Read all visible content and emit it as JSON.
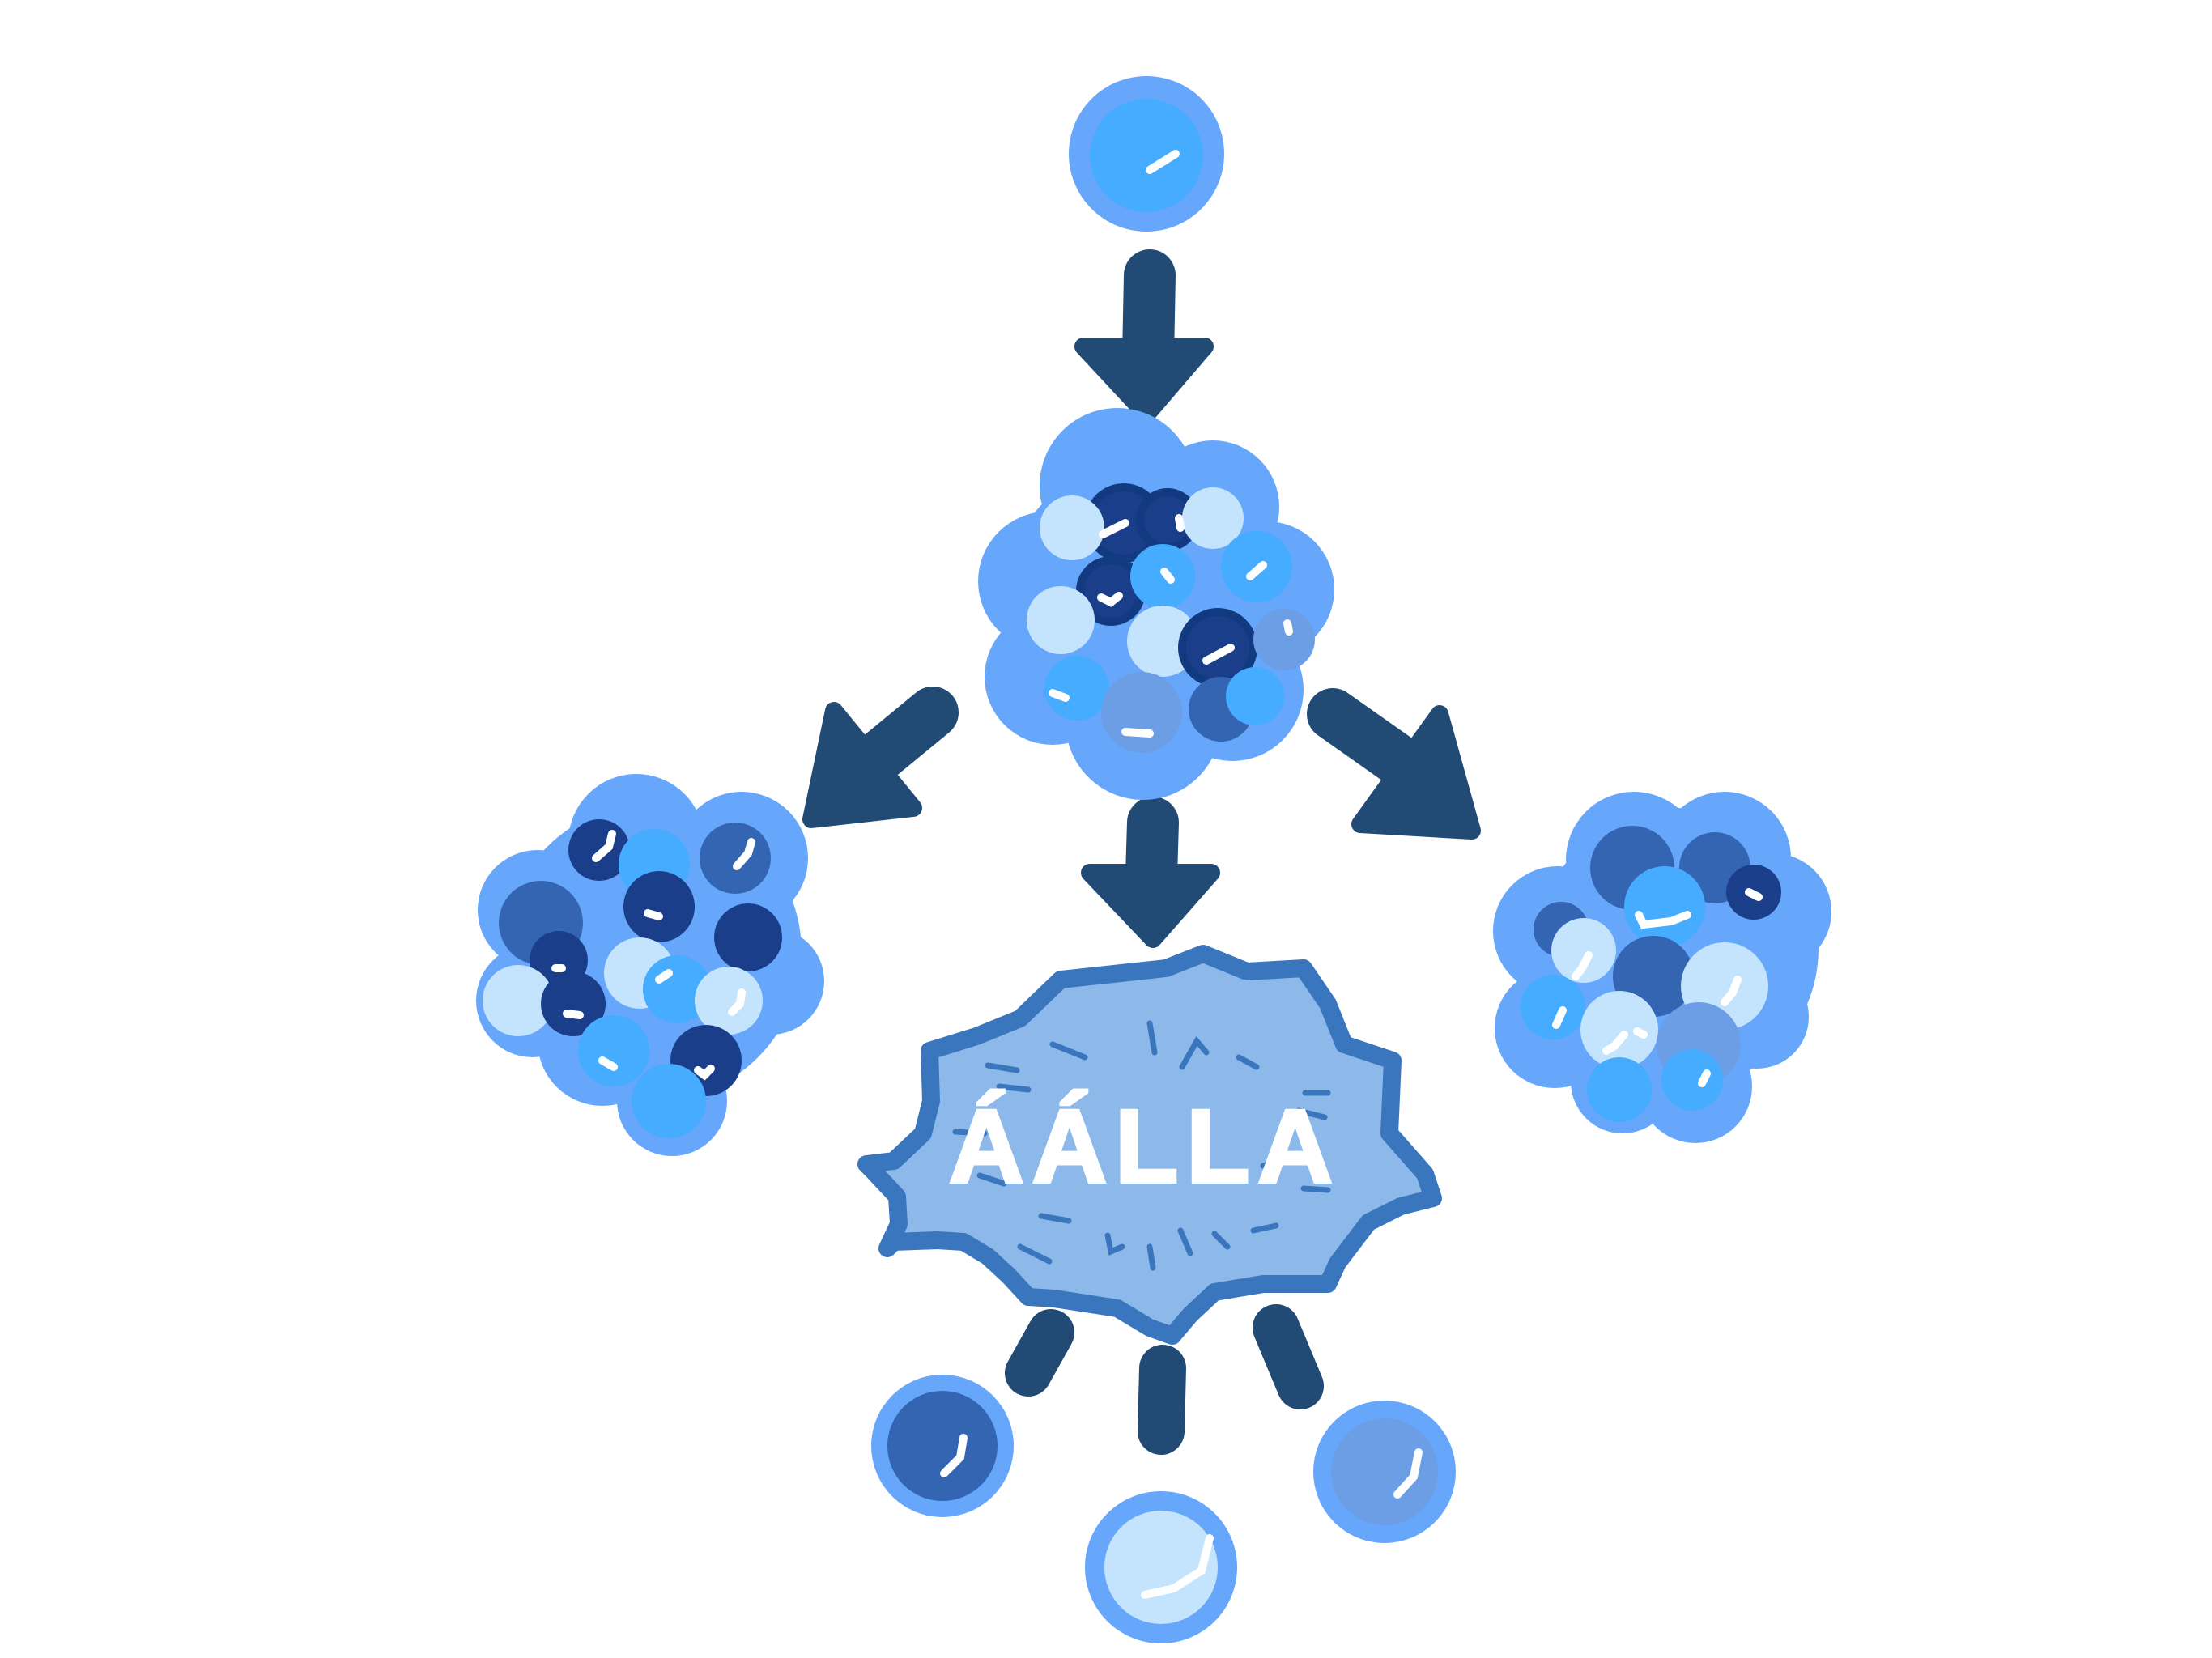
{
  "diagram": {
    "burst_label": "ÁÁLLA",
    "colors": {
      "background": "#ffffff",
      "arrow": "#214b75",
      "halo": "#66a6fb",
      "cell_bright": "#45acff",
      "cell_mid": "#3465b2",
      "cell_dark": "#1b3e8a",
      "cell_pale": "#c4e4fd",
      "cell_slate": "#6c9ee6",
      "burst_fill": "#8db9ea",
      "burst_outline": "#3a76bd",
      "highlight": "#ffffff"
    },
    "nodes": [
      {
        "name": "single-cell-top",
        "kind": "cell",
        "fill": "cell_bright"
      },
      {
        "name": "cell-cluster-center",
        "kind": "cluster"
      },
      {
        "name": "cell-cluster-left",
        "kind": "cluster"
      },
      {
        "name": "cell-cluster-right",
        "kind": "cluster"
      },
      {
        "name": "lysed-cell-burst",
        "kind": "burst"
      },
      {
        "name": "single-cell-bottom-left",
        "kind": "cell",
        "fill": "cell_mid"
      },
      {
        "name": "single-cell-bottom-middle",
        "kind": "cell",
        "fill": "cell_pale"
      },
      {
        "name": "single-cell-bottom-right",
        "kind": "cell",
        "fill": "cell_slate"
      }
    ]
  }
}
